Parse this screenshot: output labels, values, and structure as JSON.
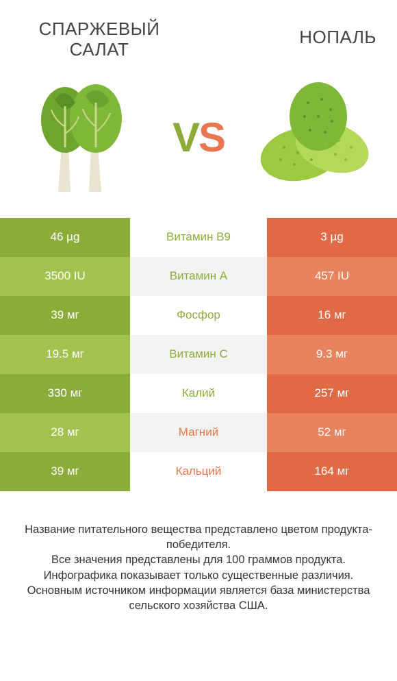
{
  "header": {
    "left_title": "СПАРЖЕВЫЙ САЛАТ",
    "right_title": "НОПАЛЬ"
  },
  "vs": {
    "v": "V",
    "s": "S"
  },
  "colors": {
    "left_dark": "#8aad3a",
    "left_light": "#a3c14f",
    "right_dark": "#e06a45",
    "right_light": "#e8835f",
    "mid_odd": "#ffffff",
    "mid_even": "#f3f3f1",
    "text_left_win": "#8aad3a",
    "text_right_win": "#e8764e"
  },
  "rows": [
    {
      "left": "46 µg",
      "mid": "Витамин B9",
      "right": "3 µg",
      "winner": "left"
    },
    {
      "left": "3500 IU",
      "mid": "Витамин A",
      "right": "457 IU",
      "winner": "left"
    },
    {
      "left": "39 мг",
      "mid": "Фосфор",
      "right": "16 мг",
      "winner": "left"
    },
    {
      "left": "19.5 мг",
      "mid": "Витамин C",
      "right": "9.3 мг",
      "winner": "left"
    },
    {
      "left": "330 мг",
      "mid": "Калий",
      "right": "257 мг",
      "winner": "left"
    },
    {
      "left": "28 мг",
      "mid": "Магний",
      "right": "52 мг",
      "winner": "right"
    },
    {
      "left": "39 мг",
      "mid": "Кальций",
      "right": "164 мг",
      "winner": "right"
    }
  ],
  "footer": {
    "line1": "Название питательного вещества представлено цветом продукта-победителя.",
    "line2": "Все значения представлены для 100 граммов продукта.",
    "line3": "Инфографика показывает только существенные различия.",
    "line4": "Основным источником информации является база министерства сельского хозяйства США."
  }
}
